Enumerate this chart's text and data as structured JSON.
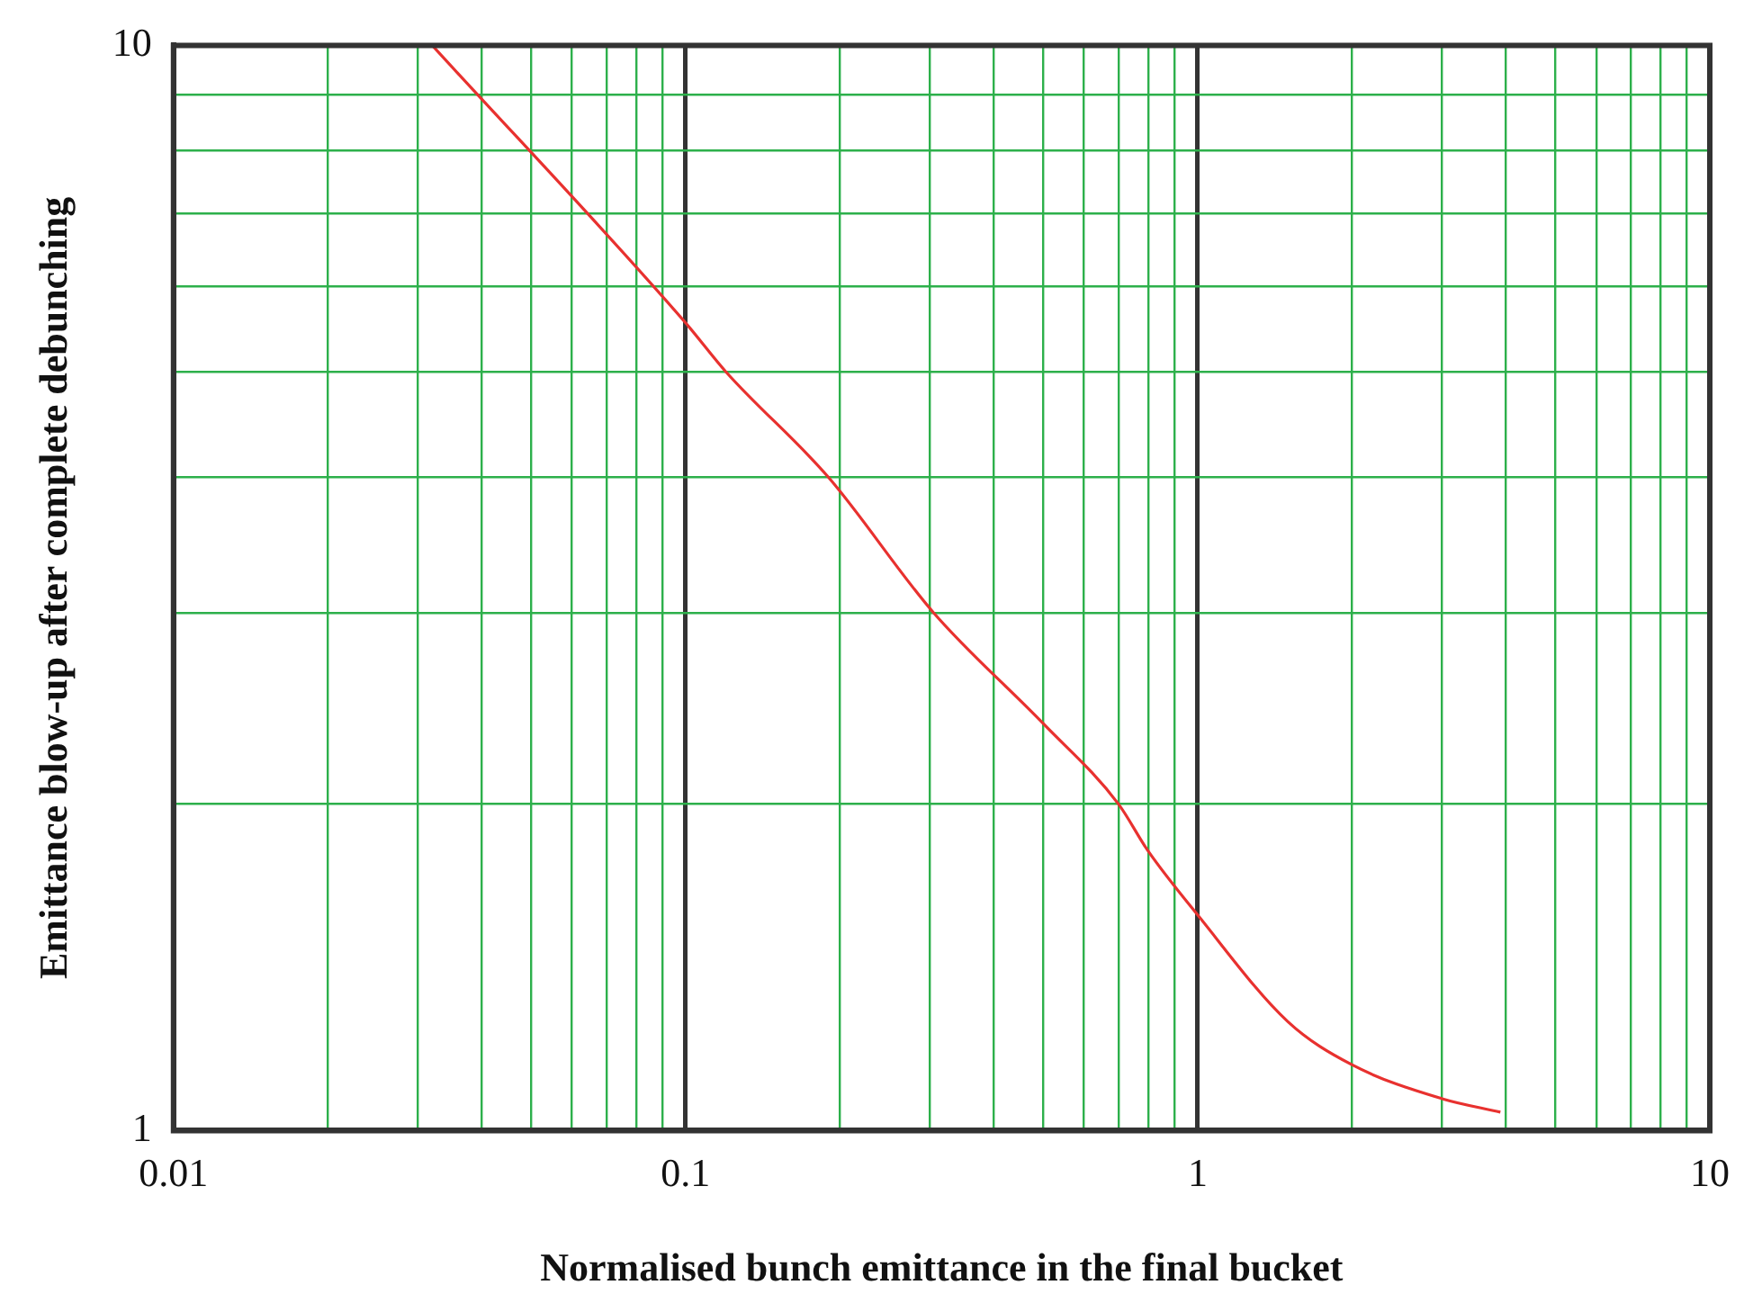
{
  "chart_data": {
    "type": "line",
    "xlabel": "Normalised bunch emittance in the final bucket",
    "ylabel": "Emittance blow-up after complete debunching",
    "x": [
      0.032,
      0.1,
      0.12,
      0.19,
      0.305,
      0.5,
      0.7,
      0.8,
      1,
      1.5,
      2,
      3,
      3.9
    ],
    "series": [
      {
        "color": "#e8312f",
        "values": [
          10,
          5.55,
          5,
          4,
          3,
          2.37,
          2,
          1.81,
          1.58,
          1.26,
          1.15,
          1.07,
          1.04
        ]
      }
    ],
    "log": "xy",
    "grid": true,
    "legend": false,
    "marker": "none",
    "line_style": "solid",
    "xlim": [
      0.01,
      10
    ],
    "ylim": [
      1,
      10
    ],
    "xticks": [
      0.01,
      {
        "value": 0.02,
        "label": null
      },
      {
        "value": 0.03,
        "label": null
      },
      {
        "value": 0.04,
        "label": null
      },
      {
        "value": 0.05,
        "label": null
      },
      {
        "value": 0.06,
        "label": null
      },
      {
        "value": 0.07,
        "label": null
      },
      {
        "value": 0.08,
        "label": null
      },
      {
        "value": 0.09,
        "label": null
      },
      0.1,
      {
        "value": 0.2,
        "label": null
      },
      {
        "value": 0.3,
        "label": null
      },
      {
        "value": 0.4,
        "label": null
      },
      {
        "value": 0.5,
        "label": null
      },
      {
        "value": 0.6,
        "label": null
      },
      {
        "value": 0.7,
        "label": null
      },
      {
        "value": 0.8,
        "label": null
      },
      {
        "value": 0.9,
        "label": null
      },
      1,
      {
        "value": 2,
        "label": null
      },
      {
        "value": 3,
        "label": null
      },
      {
        "value": 4,
        "label": null
      },
      {
        "value": 5,
        "label": null
      },
      {
        "value": 6,
        "label": null
      },
      {
        "value": 7,
        "label": null
      },
      {
        "value": 8,
        "label": null
      },
      {
        "value": 9,
        "label": null
      },
      10
    ],
    "yticks": [
      1,
      {
        "value": 2,
        "label": null
      },
      {
        "value": 3,
        "label": null
      },
      {
        "value": 4,
        "label": null
      },
      {
        "value": 5,
        "label": null
      },
      {
        "value": 6,
        "label": null
      },
      {
        "value": 7,
        "label": null
      },
      {
        "value": 8,
        "label": null
      },
      {
        "value": 9,
        "label": null
      },
      10
    ]
  }
}
